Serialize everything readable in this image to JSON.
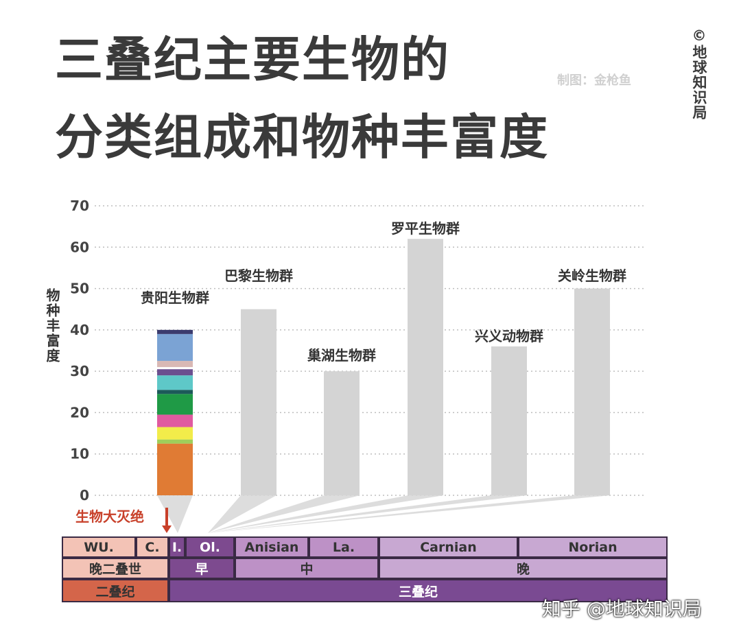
{
  "title_line1": "三叠纪主要生物的",
  "title_line2": "分类组成和物种丰富度",
  "credit": "制图：金枪鱼",
  "brand": "©地球知识局",
  "footer_watermark": "知乎 @地球知识局",
  "chart_data": {
    "type": "bar",
    "ylabel": "物种丰富度",
    "ylim": [
      0,
      70
    ],
    "yticks": [
      0,
      10,
      20,
      30,
      40,
      50,
      60,
      70
    ],
    "grid": true,
    "categories": [
      "贵阳生物群",
      "巴黎生物群",
      "巢湖生物群",
      "罗平生物群",
      "兴义动物群",
      "关岭生物群"
    ],
    "values": [
      40,
      45,
      30,
      62,
      36,
      50
    ],
    "bar_color": "#d4d4d4",
    "stacked_segments_guiyang": [
      {
        "value": 12.5,
        "color": "#e07b34"
      },
      {
        "value": 1,
        "color": "#9fcf5a"
      },
      {
        "value": 3,
        "color": "#f2ec4a"
      },
      {
        "value": 3,
        "color": "#e05aa0"
      },
      {
        "value": 5,
        "color": "#1f9a46"
      },
      {
        "value": 1,
        "color": "#1d5a5a"
      },
      {
        "value": 3.5,
        "color": "#5ec8c8"
      },
      {
        "value": 1.5,
        "color": "#6b4f8f"
      },
      {
        "value": 0.5,
        "color": "#ffffff"
      },
      {
        "value": 1.5,
        "color": "#d9b8b4"
      },
      {
        "value": 6.5,
        "color": "#7ba3d4"
      },
      {
        "value": 1,
        "color": "#3b3b6e"
      }
    ],
    "annotation": "生物大灭绝",
    "annotation_color": "#c8402a"
  },
  "timeline": {
    "row1": [
      {
        "label": "WU.",
        "color": "#f3c3b6"
      },
      {
        "label": "C.",
        "color": "#f3c3b6"
      },
      {
        "label": "I.",
        "color": "#7d4a8f"
      },
      {
        "label": "Ol.",
        "color": "#7d4a8f"
      },
      {
        "label": "Anisian",
        "color": "#bd91c6"
      },
      {
        "label": "La.",
        "color": "#bd91c6"
      },
      {
        "label": "Carnian",
        "color": "#c8a8d2"
      },
      {
        "label": "Norian",
        "color": "#c8a8d2"
      }
    ],
    "row2": [
      {
        "label": "晚二叠世",
        "color": "#f3c3b6"
      },
      {
        "label": "早",
        "color": "#7d4a8f"
      },
      {
        "label": "中",
        "color": "#bd91c6"
      },
      {
        "label": "晚",
        "color": "#c8a8d2"
      }
    ],
    "row3": [
      {
        "label": "二叠纪",
        "color": "#d4654a"
      },
      {
        "label": "三叠纪",
        "color": "#7a4a92"
      }
    ]
  }
}
